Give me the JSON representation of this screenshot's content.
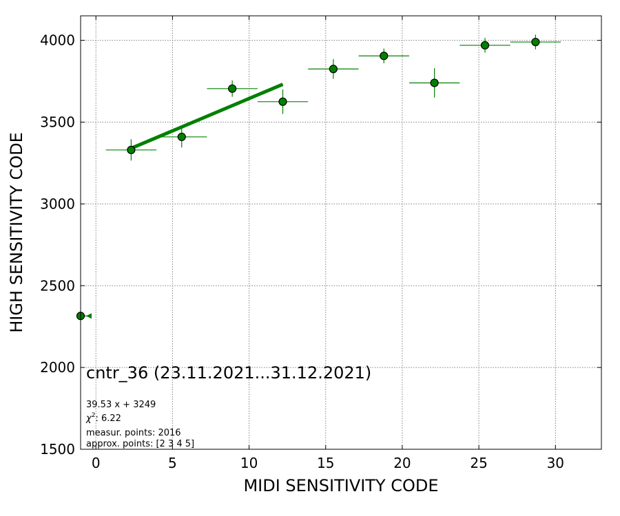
{
  "chart_data": {
    "type": "scatter",
    "title": "cntr_36 (23.11.2021...31.12.2021)",
    "xlabel": "MIDI SENSITIVITY CODE",
    "ylabel": "HIGH SENSITIVITY CODE",
    "xlim": [
      -1,
      33
    ],
    "ylim": [
      1500,
      4150
    ],
    "xticks": [
      0,
      5,
      10,
      15,
      20,
      25,
      30
    ],
    "yticks": [
      1500,
      2000,
      2500,
      3000,
      3500,
      4000
    ],
    "grid": true,
    "colors": {
      "series": "#008000",
      "marker_edge": "#000000",
      "grid": "#808080"
    },
    "points": [
      {
        "x": -1,
        "y": 2315,
        "xerr_upper": 0.7,
        "yerr": 0,
        "outlier": true
      },
      {
        "x": 2.3,
        "y": 3330,
        "xerr": 1.65,
        "yerr": 65
      },
      {
        "x": 5.6,
        "y": 3410,
        "xerr": 1.65,
        "yerr": 65
      },
      {
        "x": 8.9,
        "y": 3705,
        "xerr": 1.65,
        "yerr": 50
      },
      {
        "x": 12.2,
        "y": 3625,
        "xerr": 1.65,
        "yerr": 75
      },
      {
        "x": 15.5,
        "y": 3825,
        "xerr": 1.65,
        "yerr": 60
      },
      {
        "x": 18.8,
        "y": 3905,
        "xerr": 1.65,
        "yerr": 45
      },
      {
        "x": 22.1,
        "y": 3740,
        "xerr": 1.65,
        "yerr": 90
      },
      {
        "x": 25.4,
        "y": 3970,
        "xerr": 1.65,
        "yerr": 45
      },
      {
        "x": 28.7,
        "y": 3990,
        "xerr": 1.65,
        "yerr": 45
      }
    ],
    "fit_line": {
      "slope": 39.53,
      "intercept": 3249,
      "x_start": 2.3,
      "x_end": 12.2
    },
    "annotations": [
      "39.53 x + 3249",
      "measur. points: 2016",
      "approx. points: [2 3 4 5]"
    ],
    "chi2_label": "χ",
    "chi2_sup": "2",
    "chi2_value": ": 6.22"
  }
}
